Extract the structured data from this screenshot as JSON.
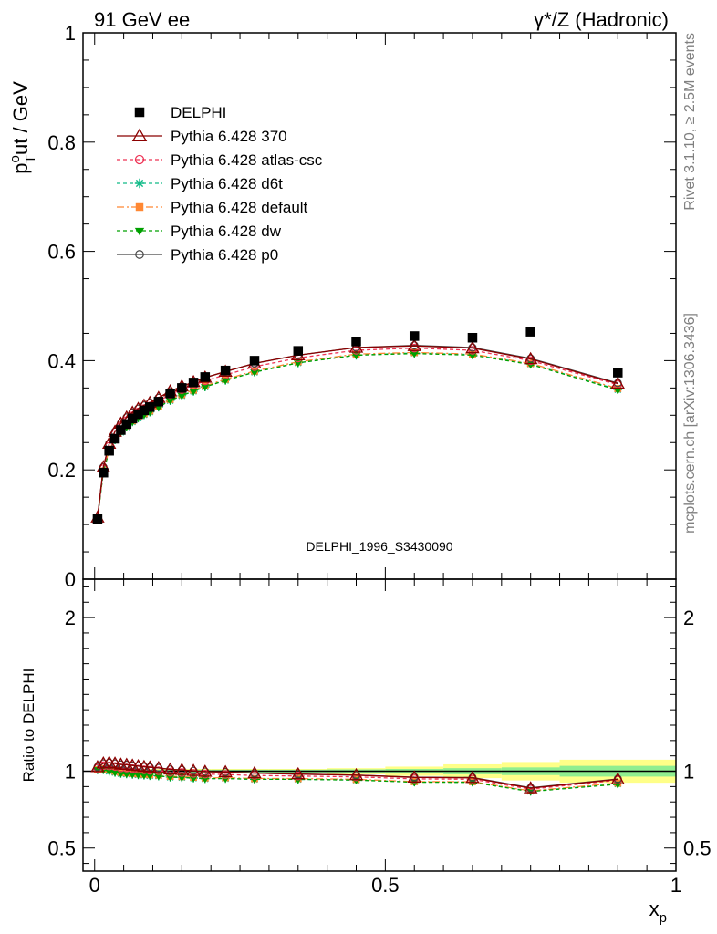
{
  "header": {
    "left": "91 GeV ee",
    "right": "γ*/Z (Hadronic)"
  },
  "side": {
    "rivet": "Rivet 3.1.10, ≥ 2.5M events",
    "mcplots": "mcplots.cern.ch [arXiv:1306.3436]"
  },
  "analysis_id": "DELPHI_1996_S3430090",
  "colors": {
    "delphi": "#000000",
    "p370": "#8b0000",
    "atlas": "#ee3355",
    "d6t": "#11bb88",
    "default": "#ff8833",
    "dw": "#00a000",
    "p0": "#444444",
    "band_inner": "#90ee90",
    "band_outer": "#ffff88"
  },
  "chart_data": [
    {
      "type": "line",
      "panel": "main",
      "ylabel": "pTout / GeV",
      "ylabel_parts": {
        "p": "p",
        "sup": "o",
        "sub": "T",
        "rest": "ut / GeV"
      },
      "xlim": [
        -0.02,
        1.0
      ],
      "ylim": [
        0.0,
        1.0
      ],
      "yticks": [
        "0",
        "0.2",
        "0.4",
        "0.6",
        "0.8",
        "1"
      ],
      "ytick_values": [
        0,
        0.2,
        0.4,
        0.6,
        0.8,
        1.0
      ],
      "legend_position": "top-left",
      "data": {
        "name": "DELPHI",
        "x": [
          0.005,
          0.015,
          0.025,
          0.035,
          0.045,
          0.055,
          0.065,
          0.075,
          0.085,
          0.095,
          0.11,
          0.13,
          0.15,
          0.17,
          0.19,
          0.225,
          0.275,
          0.35,
          0.45,
          0.55,
          0.65,
          0.75,
          0.9
        ],
        "y": [
          0.11,
          0.195,
          0.235,
          0.257,
          0.273,
          0.284,
          0.294,
          0.302,
          0.309,
          0.315,
          0.325,
          0.34,
          0.35,
          0.36,
          0.37,
          0.382,
          0.4,
          0.418,
          0.435,
          0.445,
          0.442,
          0.453,
          0.378
        ]
      },
      "series": [
        {
          "name": "Pythia 6.428 370",
          "key": "p370",
          "y": [
            0.113,
            0.205,
            0.248,
            0.27,
            0.285,
            0.296,
            0.305,
            0.312,
            0.318,
            0.323,
            0.332,
            0.344,
            0.353,
            0.361,
            0.369,
            0.38,
            0.395,
            0.41,
            0.424,
            0.427,
            0.423,
            0.403,
            0.358
          ]
        },
        {
          "name": "Pythia 6.428 atlas-csc",
          "key": "atlas",
          "y": [
            0.112,
            0.202,
            0.243,
            0.265,
            0.279,
            0.29,
            0.299,
            0.306,
            0.312,
            0.317,
            0.326,
            0.338,
            0.347,
            0.355,
            0.363,
            0.374,
            0.389,
            0.405,
            0.419,
            0.423,
            0.419,
            0.4,
            0.356
          ]
        },
        {
          "name": "Pythia 6.428 d6t",
          "key": "d6t",
          "y": [
            0.111,
            0.197,
            0.235,
            0.255,
            0.269,
            0.279,
            0.288,
            0.295,
            0.301,
            0.306,
            0.315,
            0.327,
            0.336,
            0.344,
            0.352,
            0.364,
            0.379,
            0.396,
            0.41,
            0.414,
            0.411,
            0.394,
            0.347
          ]
        },
        {
          "name": "Pythia 6.428 default",
          "key": "default",
          "y": [
            0.111,
            0.198,
            0.237,
            0.257,
            0.271,
            0.281,
            0.29,
            0.297,
            0.303,
            0.308,
            0.317,
            0.329,
            0.338,
            0.346,
            0.354,
            0.366,
            0.381,
            0.398,
            0.412,
            0.415,
            0.412,
            0.395,
            0.349
          ]
        },
        {
          "name": "Pythia 6.428 dw",
          "key": "dw",
          "y": [
            0.111,
            0.197,
            0.235,
            0.255,
            0.269,
            0.279,
            0.288,
            0.295,
            0.301,
            0.306,
            0.315,
            0.327,
            0.336,
            0.344,
            0.352,
            0.364,
            0.379,
            0.396,
            0.41,
            0.413,
            0.41,
            0.393,
            0.346
          ]
        },
        {
          "name": "Pythia 6.428 p0",
          "key": "p0",
          "y": [
            0.113,
            0.205,
            0.248,
            0.27,
            0.285,
            0.296,
            0.305,
            0.312,
            0.318,
            0.323,
            0.332,
            0.344,
            0.353,
            0.361,
            0.369,
            0.38,
            0.395,
            0.41,
            0.424,
            0.428,
            0.424,
            0.404,
            0.359
          ]
        }
      ]
    },
    {
      "type": "line",
      "panel": "ratio",
      "ylabel": "Ratio to DELPHI",
      "xlabel": "xp",
      "xlabel_parts": {
        "main": "x",
        "sub": "p"
      },
      "xlim": [
        -0.02,
        1.0
      ],
      "ylim": [
        0.35,
        2.25
      ],
      "xticks": [
        "0",
        "0.5",
        "1"
      ],
      "xtick_values": [
        0,
        0.5,
        1.0
      ],
      "yticks": [
        "0.5",
        "1",
        "2"
      ],
      "ytick_values": [
        0.5,
        1.0,
        2.0
      ],
      "uncertainty_bins": {
        "edges": [
          0.0,
          0.01,
          0.02,
          0.03,
          0.04,
          0.05,
          0.06,
          0.07,
          0.08,
          0.09,
          0.1,
          0.12,
          0.14,
          0.16,
          0.18,
          0.2,
          0.25,
          0.3,
          0.4,
          0.5,
          0.6,
          0.7,
          0.8,
          1.0
        ],
        "inner": [
          0.01,
          0.01,
          0.01,
          0.01,
          0.01,
          0.01,
          0.01,
          0.01,
          0.01,
          0.01,
          0.01,
          0.01,
          0.01,
          0.01,
          0.01,
          0.01,
          0.01,
          0.01,
          0.012,
          0.015,
          0.02,
          0.025,
          0.035
        ],
        "outer": [
          0.015,
          0.015,
          0.015,
          0.015,
          0.015,
          0.015,
          0.015,
          0.015,
          0.015,
          0.015,
          0.015,
          0.015,
          0.015,
          0.015,
          0.015,
          0.015,
          0.015,
          0.015,
          0.02,
          0.03,
          0.045,
          0.06,
          0.075
        ]
      }
    }
  ]
}
